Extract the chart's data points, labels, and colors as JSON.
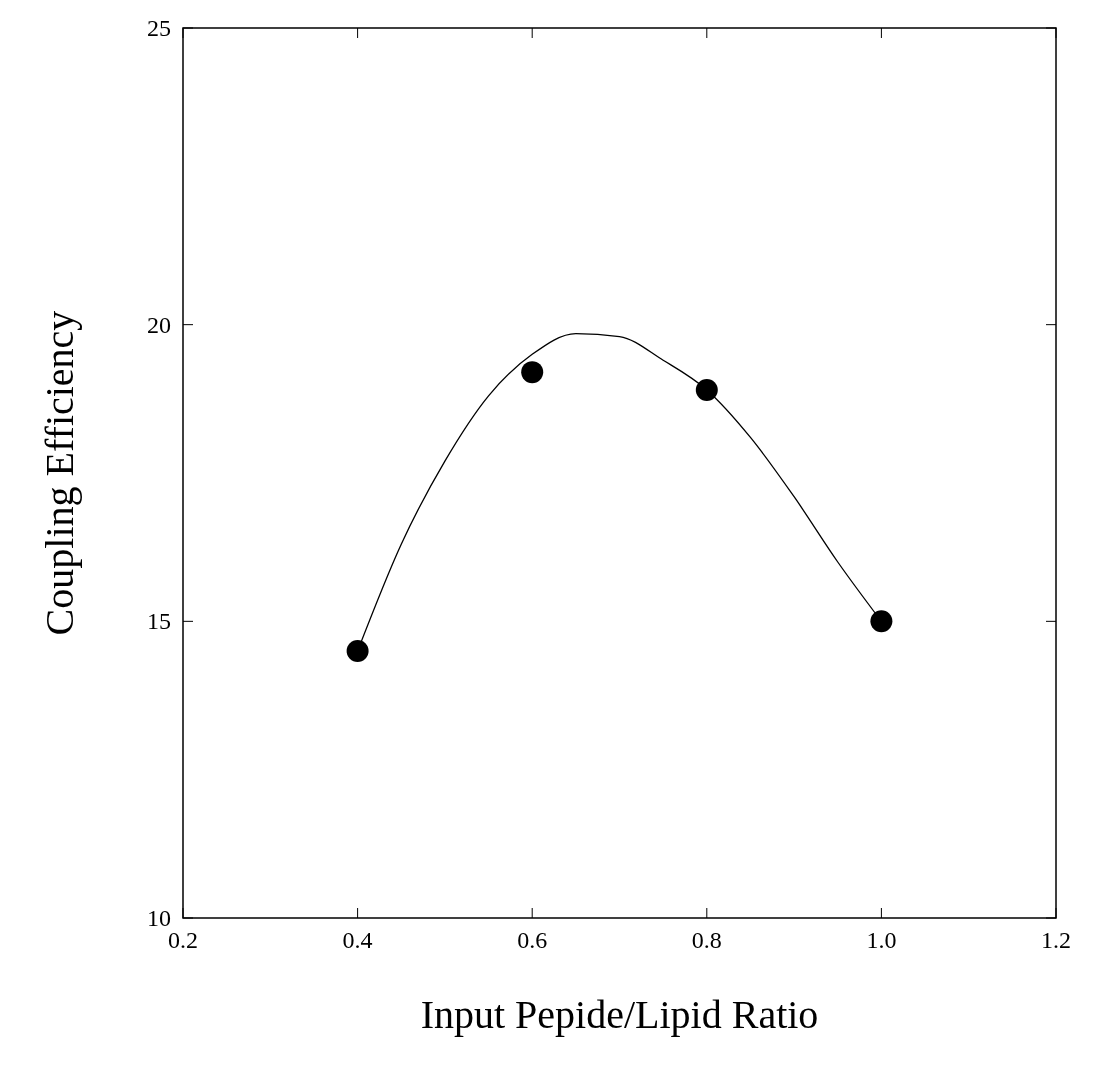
{
  "chart_data": {
    "type": "scatter",
    "xlabel": "Input Pepide/Lipid Ratio",
    "ylabel": "Coupling Efficiency",
    "xlim": [
      0.2,
      1.2
    ],
    "ylim": [
      10,
      25
    ],
    "xticks": [
      0.2,
      0.4,
      0.6,
      0.8,
      {
        "value": 1,
        "label": "1.0"
      },
      1.2
    ],
    "yticks": [
      10,
      15,
      20,
      25
    ],
    "grid": false,
    "marker": "circle",
    "series": [
      {
        "color": "#000000",
        "x": [
          0.4,
          0.6,
          0.8,
          1.0
        ],
        "values": [
          14.5,
          19.2,
          18.9,
          15.0
        ]
      },
      {
        "type": "line",
        "color": "#000000",
        "line_style": "solid",
        "marker": "none",
        "x": [
          0.4,
          0.45,
          0.5,
          0.55,
          0.6,
          0.65,
          0.7,
          0.75,
          0.8,
          0.85,
          0.9,
          0.95,
          1.0
        ],
        "values": [
          14.5,
          16.3,
          17.7,
          18.8,
          19.5,
          19.85,
          19.8,
          19.4,
          18.9,
          18.1,
          17.1,
          16.0,
          15.0
        ]
      }
    ]
  }
}
